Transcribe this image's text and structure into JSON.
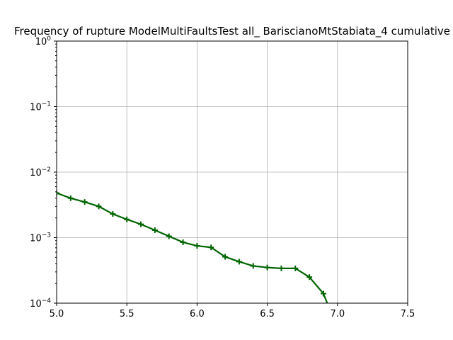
{
  "chart_data": {
    "type": "line",
    "title": "Frequency of rupture ModelMultiFaultsTest all_ BariscianoMtStabiata_4 cumulative",
    "xlabel": "",
    "ylabel": "",
    "xlim": [
      5.0,
      7.5
    ],
    "ylim": [
      0.0001,
      1
    ],
    "yscale": "log",
    "grid": true,
    "xticks": [
      "5.0",
      "5.5",
      "6.0",
      "6.5",
      "7.0",
      "7.5"
    ],
    "xtick_values": [
      5.0,
      5.5,
      6.0,
      6.5,
      7.0,
      7.5
    ],
    "yticks": [
      {
        "base": "10",
        "exp": "0",
        "value": 1
      },
      {
        "base": "10",
        "exp": "−1",
        "value": 0.1
      },
      {
        "base": "10",
        "exp": "−2",
        "value": 0.01
      },
      {
        "base": "10",
        "exp": "−3",
        "value": 0.001
      },
      {
        "base": "10",
        "exp": "−4",
        "value": 0.0001
      }
    ],
    "series": [
      {
        "color": "#006400",
        "marker": "+",
        "x": [
          5.0,
          5.1,
          5.2,
          5.3,
          5.4,
          5.5,
          5.6,
          5.7,
          5.8,
          5.9,
          6.0,
          6.1,
          6.2,
          6.3,
          6.4,
          6.5,
          6.6,
          6.7,
          6.8,
          6.9,
          7.0
        ],
        "y": [
          0.0048,
          0.004,
          0.0035,
          0.003,
          0.0023,
          0.0019,
          0.0016,
          0.0013,
          0.00105,
          0.00085,
          0.00075,
          0.00071,
          0.00051,
          0.00043,
          0.00037,
          0.00035,
          0.00034,
          0.00034,
          0.00025,
          0.00014,
          4e-05
        ]
      }
    ]
  }
}
